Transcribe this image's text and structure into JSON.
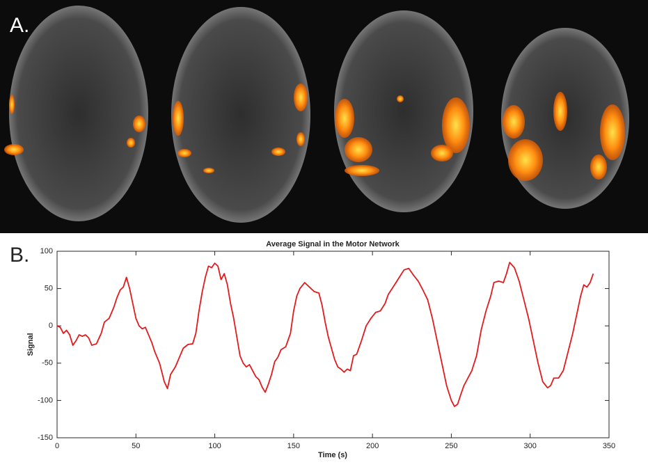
{
  "panel_labels": [
    "A.",
    "B."
  ],
  "chart_data": {
    "type": "line",
    "title": "Average Signal in the Motor Network",
    "xlabel": "Time (s)",
    "ylabel": "Signal",
    "xlim": [
      0,
      350
    ],
    "xticks": [
      0,
      50,
      100,
      150,
      200,
      250,
      300,
      350
    ],
    "ylim": [
      -150,
      100
    ],
    "yticks": [
      -150,
      -100,
      -50,
      0,
      50,
      100
    ],
    "series": [
      {
        "name": "Average Signal",
        "color": "#e3191c",
        "x": [
          0,
          2,
          4,
          6,
          8,
          10,
          12,
          14,
          16,
          18,
          20,
          22,
          25,
          28,
          30,
          33,
          36,
          38,
          40,
          42,
          44,
          46,
          48,
          50,
          52,
          54,
          56,
          58,
          60,
          62,
          65,
          68,
          70,
          72,
          75,
          78,
          80,
          83,
          86,
          88,
          90,
          92,
          94,
          96,
          98,
          100,
          102,
          104,
          106,
          108,
          110,
          112,
          114,
          116,
          118,
          120,
          122,
          124,
          126,
          128,
          130,
          132,
          134,
          136,
          138,
          140,
          142,
          145,
          148,
          150,
          152,
          154,
          157,
          160,
          163,
          166,
          168,
          170,
          172,
          174,
          176,
          178,
          180,
          182,
          184,
          186,
          188,
          190,
          193,
          196,
          199,
          202,
          205,
          208,
          210,
          214,
          217,
          220,
          223,
          226,
          229,
          232,
          235,
          238,
          241,
          244,
          247,
          250,
          252,
          254,
          256,
          258,
          260,
          263,
          266,
          269,
          272,
          275,
          277,
          280,
          283,
          285,
          287,
          290,
          293,
          296,
          299,
          302,
          305,
          308,
          311,
          313,
          315,
          318,
          321,
          324,
          327,
          330,
          332,
          334,
          336,
          338,
          340
        ],
        "values": [
          0,
          -2,
          -10,
          -6,
          -12,
          -26,
          -20,
          -12,
          -14,
          -12,
          -16,
          -26,
          -24,
          -10,
          5,
          10,
          25,
          38,
          48,
          52,
          65,
          50,
          30,
          10,
          0,
          -4,
          -2,
          -12,
          -22,
          -35,
          -50,
          -75,
          -84,
          -65,
          -55,
          -40,
          -30,
          -25,
          -24,
          -10,
          20,
          45,
          65,
          80,
          78,
          84,
          80,
          62,
          70,
          55,
          30,
          10,
          -15,
          -40,
          -50,
          -55,
          -52,
          -60,
          -68,
          -72,
          -82,
          -89,
          -78,
          -65,
          -48,
          -42,
          -32,
          -28,
          -10,
          20,
          40,
          50,
          58,
          52,
          46,
          44,
          28,
          5,
          -15,
          -30,
          -45,
          -55,
          -58,
          -62,
          -58,
          -60,
          -40,
          -38,
          -20,
          0,
          10,
          18,
          20,
          30,
          42,
          55,
          65,
          75,
          77,
          68,
          60,
          48,
          35,
          10,
          -20,
          -50,
          -80,
          -100,
          -108,
          -105,
          -92,
          -80,
          -72,
          -60,
          -40,
          -5,
          20,
          40,
          58,
          60,
          58,
          70,
          85,
          78,
          60,
          35,
          10,
          -20,
          -50,
          -75,
          -83,
          -80,
          -70,
          -70,
          -60,
          -35,
          -10,
          20,
          40,
          55,
          52,
          58,
          70
        ]
      }
    ]
  }
}
